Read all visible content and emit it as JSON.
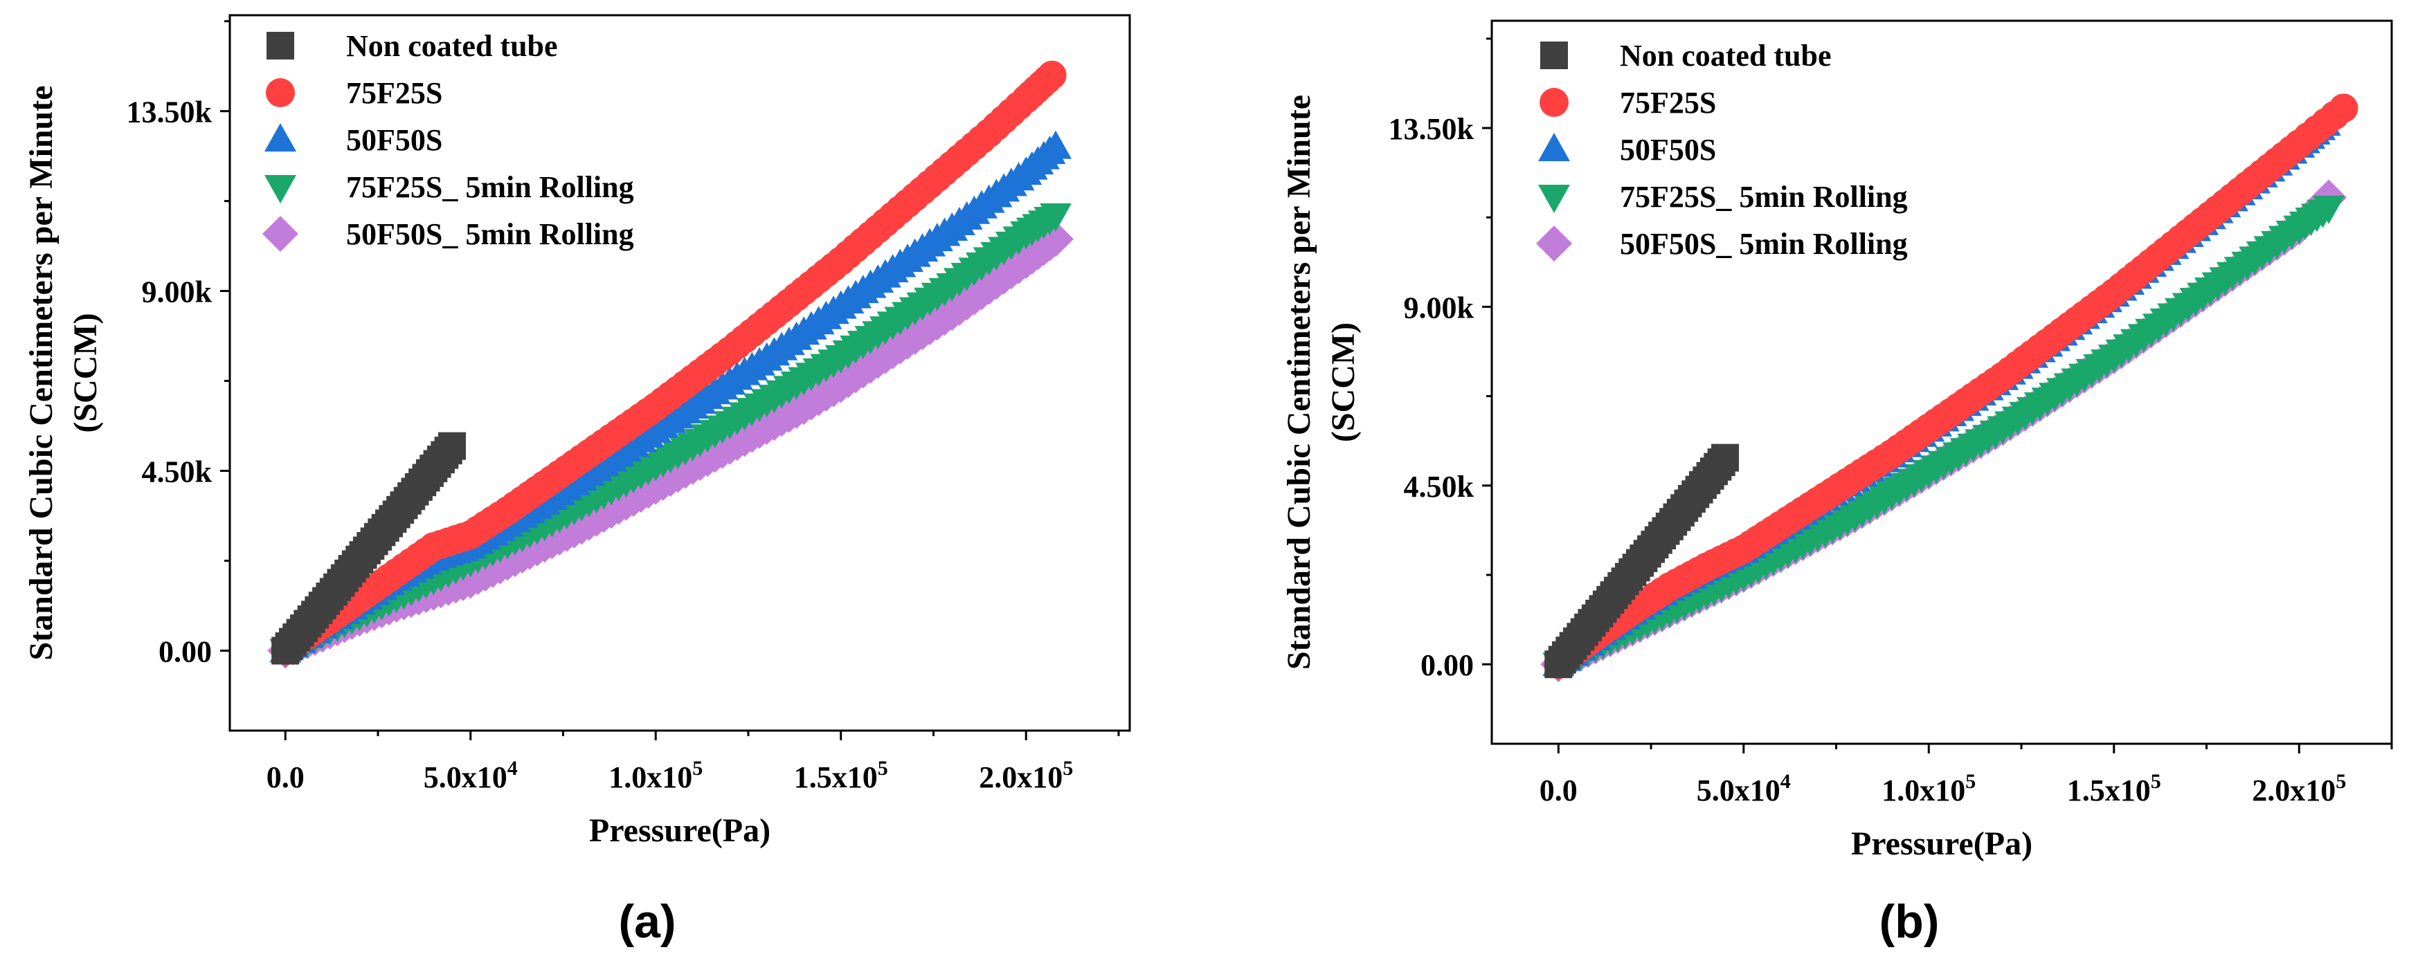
{
  "figure": {
    "panel_labels": [
      "(a)",
      "(b)"
    ]
  },
  "chart_data": [
    {
      "type": "scatter",
      "panel": "(a)",
      "title": "",
      "xlabel": "Pressure(Pa)",
      "ylabel": "Standard Cubic Centimeters per Minute (SCCM)",
      "ylabel_lines": [
        "Standard Cubic Centimeters per Minute",
        "(SCCM)"
      ],
      "xlim": [
        -15000,
        228000
      ],
      "ylim": [
        -2000,
        15900
      ],
      "xticks": [
        {
          "value": 0,
          "base": "0.0",
          "exp": ""
        },
        {
          "value": 50000,
          "base": "5.0x10",
          "exp": "4"
        },
        {
          "value": 100000,
          "base": "1.0x10",
          "exp": "5"
        },
        {
          "value": 150000,
          "base": "1.5x10",
          "exp": "5"
        },
        {
          "value": 200000,
          "base": "2.0x10",
          "exp": "5"
        }
      ],
      "yticks": [
        {
          "value": 0,
          "label": "0.00"
        },
        {
          "value": 4500,
          "label": "4.50k"
        },
        {
          "value": 9000,
          "label": "9.00k"
        },
        {
          "value": 13500,
          "label": "13.50k"
        }
      ],
      "grid": false,
      "legend_position": "top-left",
      "series": [
        {
          "name": "Non coated tube",
          "marker": "square",
          "color": "#404040",
          "x": [
            0,
            5000,
            10000,
            15000,
            20000,
            25000,
            30000,
            35000,
            40000,
            45000
          ],
          "y": [
            0,
            560,
            1130,
            1700,
            2280,
            2850,
            3410,
            3980,
            4560,
            5120
          ]
        },
        {
          "name": "75F25S",
          "marker": "circle",
          "color": "#ff4040",
          "x": [
            0,
            10000,
            20000,
            30000,
            40000,
            50000,
            60000,
            70000,
            80000,
            90000,
            100000,
            110000,
            120000,
            130000,
            140000,
            150000,
            160000,
            170000,
            180000,
            190000,
            200000,
            207000
          ],
          "y": [
            0,
            650,
            1300,
            1950,
            2600,
            2900,
            3500,
            4150,
            4800,
            5450,
            6100,
            6800,
            7500,
            8250,
            9000,
            9750,
            10550,
            11350,
            12150,
            12950,
            13800,
            14400
          ]
        },
        {
          "name": "50F50S",
          "marker": "triangle-up",
          "color": "#1e73d7",
          "x": [
            0,
            10000,
            20000,
            30000,
            40000,
            50000,
            60000,
            70000,
            80000,
            90000,
            100000,
            110000,
            120000,
            130000,
            140000,
            150000,
            160000,
            170000,
            180000,
            190000,
            200000,
            208000
          ],
          "y": [
            0,
            600,
            1200,
            1800,
            2300,
            2600,
            3150,
            3700,
            4300,
            4900,
            5500,
            6100,
            6700,
            7300,
            7950,
            8600,
            9250,
            9900,
            10550,
            11250,
            11950,
            12600
          ]
        },
        {
          "name": "75F25S_ 5min Rolling",
          "marker": "triangle-down",
          "color": "#1aa86a",
          "x": [
            0,
            10000,
            20000,
            30000,
            40000,
            50000,
            60000,
            70000,
            80000,
            90000,
            100000,
            110000,
            120000,
            130000,
            140000,
            150000,
            160000,
            170000,
            180000,
            190000,
            200000,
            208000
          ],
          "y": [
            0,
            450,
            900,
            1350,
            1800,
            2250,
            2700,
            3150,
            3650,
            4150,
            4650,
            5150,
            5700,
            6250,
            6800,
            7350,
            7950,
            8550,
            9150,
            9800,
            10450,
            10900
          ]
        },
        {
          "name": "50F50S_ 5min Rolling",
          "marker": "diamond",
          "color": "#c27ddb",
          "x": [
            0,
            10000,
            20000,
            30000,
            40000,
            50000,
            60000,
            70000,
            80000,
            90000,
            100000,
            110000,
            120000,
            130000,
            140000,
            150000,
            160000,
            170000,
            180000,
            190000,
            200000,
            208000
          ],
          "y": [
            0,
            400,
            800,
            1150,
            1450,
            1750,
            2200,
            2650,
            3100,
            3600,
            4100,
            4600,
            5100,
            5600,
            6100,
            6650,
            7250,
            7850,
            8450,
            9100,
            9750,
            10300
          ]
        }
      ]
    },
    {
      "type": "scatter",
      "panel": "(b)",
      "title": "",
      "xlabel": "Pressure(Pa)",
      "ylabel": "Standard Cubic Centimeters per Minute (SCCM)",
      "ylabel_lines": [
        "Standard Cubic Centimeters per Minute",
        "(SCCM)"
      ],
      "xlim": [
        -18000,
        225000
      ],
      "ylim": [
        -2000,
        16200
      ],
      "xticks": [
        {
          "value": 0,
          "base": "0.0",
          "exp": ""
        },
        {
          "value": 50000,
          "base": "5.0x10",
          "exp": "4"
        },
        {
          "value": 100000,
          "base": "1.0x10",
          "exp": "5"
        },
        {
          "value": 150000,
          "base": "1.5x10",
          "exp": "5"
        },
        {
          "value": 200000,
          "base": "2.0x10",
          "exp": "5"
        }
      ],
      "yticks": [
        {
          "value": 0,
          "label": "0.00"
        },
        {
          "value": 4500,
          "label": "4.50k"
        },
        {
          "value": 9000,
          "label": "9.00k"
        },
        {
          "value": 13500,
          "label": "13.50k"
        }
      ],
      "grid": false,
      "legend_position": "top-left",
      "series": [
        {
          "name": "Non coated tube",
          "marker": "square",
          "color": "#404040",
          "x": [
            0,
            5000,
            10000,
            15000,
            20000,
            25000,
            30000,
            35000,
            40000,
            45000
          ],
          "y": [
            0,
            580,
            1160,
            1740,
            2320,
            2900,
            3470,
            4050,
            4630,
            5200
          ]
        },
        {
          "name": "75F25S",
          "marker": "circle",
          "color": "#ff4040",
          "x": [
            0,
            10000,
            20000,
            30000,
            40000,
            50000,
            60000,
            70000,
            80000,
            90000,
            100000,
            110000,
            120000,
            130000,
            140000,
            150000,
            160000,
            170000,
            180000,
            190000,
            200000,
            212000
          ],
          "y": [
            0,
            700,
            1350,
            1950,
            2450,
            2900,
            3500,
            4100,
            4700,
            5300,
            5950,
            6600,
            7250,
            7950,
            8650,
            9350,
            10100,
            10850,
            11600,
            12350,
            13100,
            14000
          ]
        },
        {
          "name": "50F50S",
          "marker": "triangle-up",
          "color": "#1e73d7",
          "x": [
            0,
            10000,
            20000,
            30000,
            40000,
            50000,
            60000,
            70000,
            80000,
            90000,
            100000,
            110000,
            120000,
            130000,
            140000,
            150000,
            160000,
            170000,
            180000,
            190000,
            200000,
            207000
          ],
          "y": [
            0,
            650,
            1300,
            1900,
            2400,
            2850,
            3450,
            4050,
            4650,
            5250,
            5900,
            6550,
            7200,
            7900,
            8600,
            9300,
            10050,
            10800,
            11550,
            12300,
            13050,
            13600
          ]
        },
        {
          "name": "75F25S_ 5min Rolling",
          "marker": "triangle-down",
          "color": "#1aa86a",
          "x": [
            0,
            10000,
            20000,
            30000,
            40000,
            50000,
            60000,
            70000,
            80000,
            90000,
            100000,
            110000,
            120000,
            130000,
            140000,
            150000,
            160000,
            170000,
            180000,
            190000,
            200000,
            208000
          ],
          "y": [
            0,
            450,
            900,
            1350,
            1800,
            2250,
            2750,
            3250,
            3750,
            4300,
            4850,
            5400,
            5950,
            6550,
            7150,
            7750,
            8400,
            9050,
            9700,
            10350,
            11000,
            11500
          ]
        },
        {
          "name": "50F50S_ 5min Rolling",
          "marker": "diamond",
          "color": "#c27ddb",
          "x": [
            0,
            10000,
            20000,
            30000,
            40000,
            50000,
            60000,
            70000,
            80000,
            90000,
            100000,
            110000,
            120000,
            130000,
            140000,
            150000,
            160000,
            170000,
            180000,
            190000,
            200000,
            208000
          ],
          "y": [
            0,
            450,
            900,
            1350,
            1800,
            2250,
            2750,
            3250,
            3750,
            4300,
            4850,
            5400,
            5950,
            6550,
            7150,
            7750,
            8400,
            9050,
            9700,
            10350,
            11000,
            11750
          ]
        }
      ]
    }
  ]
}
